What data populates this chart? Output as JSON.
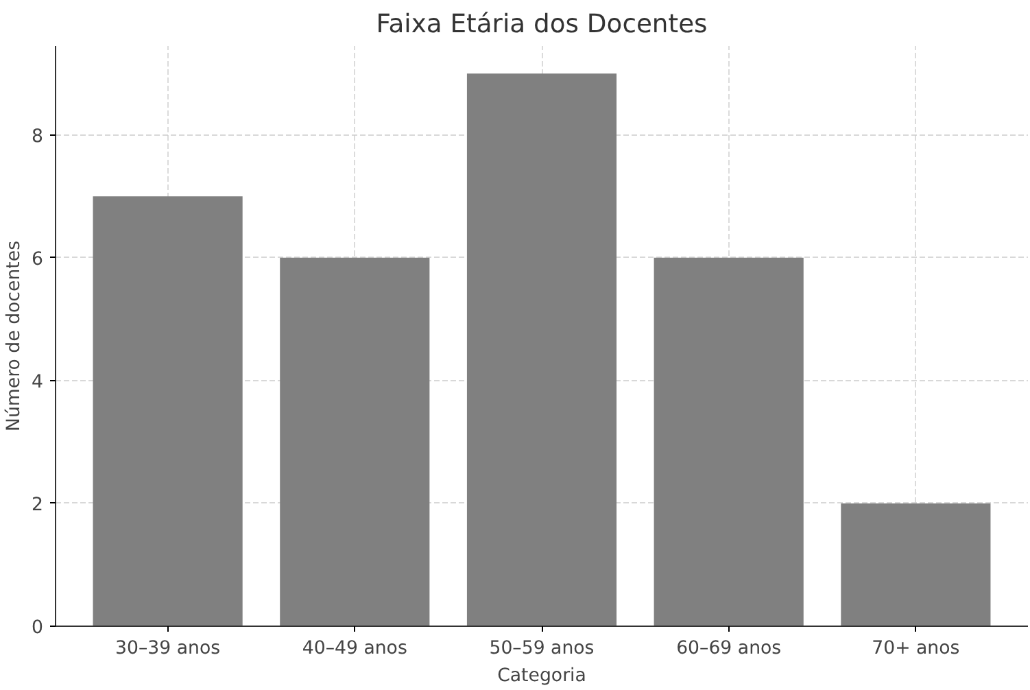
{
  "chart_data": {
    "type": "bar",
    "title": "Faixa Etária dos Docentes",
    "xlabel": "Categoria",
    "ylabel": "Número de docentes",
    "categories": [
      "30–39 anos",
      "40–49 anos",
      "50–59 anos",
      "60–69 anos",
      "70+ anos"
    ],
    "values": [
      7,
      6,
      9,
      6,
      2
    ],
    "color": "#808080",
    "ylim": [
      0,
      9.45
    ],
    "yticks": [
      0,
      2,
      4,
      6,
      8
    ],
    "grid": true
  }
}
